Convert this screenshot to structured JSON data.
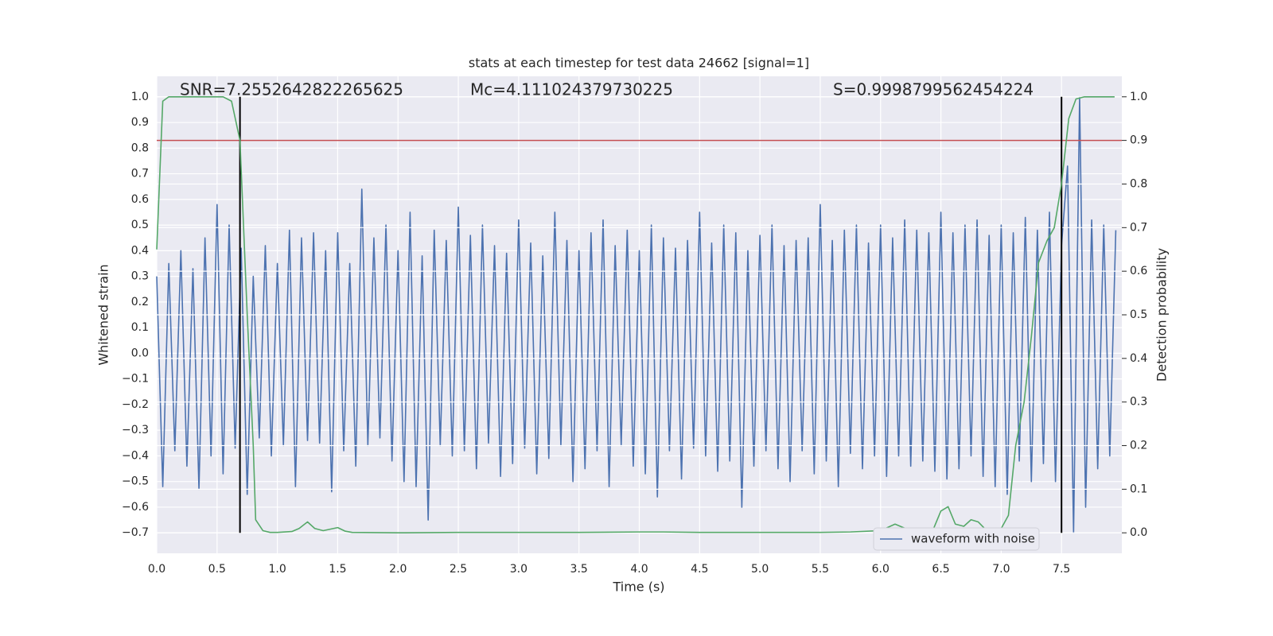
{
  "chart_data": {
    "type": "line",
    "title": "stats at each timestep for test data 24662 [signal=1]",
    "x_label": "Time (s)",
    "y_label": "Whitened strain",
    "y2_label": "Detection probability",
    "annotations": [
      "SNR=7.2552642822265625",
      "Mc=4.111024379730225",
      "S=0.9998799562454224"
    ],
    "grid": true,
    "legend": "lower right",
    "xlim": [
      0,
      8
    ],
    "ylim": [
      -0.78,
      1.08
    ],
    "y2lim": [
      -0.047,
      1.047
    ],
    "xticks": [
      {
        "value": 0,
        "label": "0.0"
      },
      {
        "value": 0.5,
        "label": "0.5"
      },
      {
        "value": 1,
        "label": "1.0"
      },
      {
        "value": 1.5,
        "label": "1.5"
      },
      {
        "value": 2,
        "label": "2.0"
      },
      {
        "value": 2.5,
        "label": "2.5"
      },
      {
        "value": 3,
        "label": "3.0"
      },
      {
        "value": 3.5,
        "label": "3.5"
      },
      {
        "value": 4,
        "label": "4.0"
      },
      {
        "value": 4.5,
        "label": "4.5"
      },
      {
        "value": 5,
        "label": "5.0"
      },
      {
        "value": 5.5,
        "label": "5.5"
      },
      {
        "value": 6,
        "label": "6.0"
      },
      {
        "value": 6.5,
        "label": "6.5"
      },
      {
        "value": 7,
        "label": "7.0"
      },
      {
        "value": 7.5,
        "label": "7.5"
      }
    ],
    "yticks": [
      {
        "value": -0.7,
        "label": "−0.7"
      },
      {
        "value": -0.6,
        "label": "−0.6"
      },
      {
        "value": -0.5,
        "label": "−0.5"
      },
      {
        "value": -0.4,
        "label": "−0.4"
      },
      {
        "value": -0.3,
        "label": "−0.3"
      },
      {
        "value": -0.2,
        "label": "−0.2"
      },
      {
        "value": -0.1,
        "label": "−0.1"
      },
      {
        "value": 0,
        "label": "0.0"
      },
      {
        "value": 0.1,
        "label": "0.1"
      },
      {
        "value": 0.2,
        "label": "0.2"
      },
      {
        "value": 0.3,
        "label": "0.3"
      },
      {
        "value": 0.4,
        "label": "0.4"
      },
      {
        "value": 0.5,
        "label": "0.5"
      },
      {
        "value": 0.6,
        "label": "0.6"
      },
      {
        "value": 0.7,
        "label": "0.7"
      },
      {
        "value": 0.8,
        "label": "0.8"
      },
      {
        "value": 0.9,
        "label": "0.9"
      },
      {
        "value": 1,
        "label": "1.0"
      }
    ],
    "y2ticks": [
      {
        "value": 0,
        "label": "0.0"
      },
      {
        "value": 0.1,
        "label": "0.1"
      },
      {
        "value": 0.2,
        "label": "0.2"
      },
      {
        "value": 0.3,
        "label": "0.3"
      },
      {
        "value": 0.4,
        "label": "0.4"
      },
      {
        "value": 0.5,
        "label": "0.5"
      },
      {
        "value": 0.6,
        "label": "0.6"
      },
      {
        "value": 0.7,
        "label": "0.7"
      },
      {
        "value": 0.8,
        "label": "0.8"
      },
      {
        "value": 0.9,
        "label": "0.9"
      },
      {
        "value": 1,
        "label": "1.0"
      }
    ],
    "series": [
      {
        "name": "waveform with noise",
        "color": "#4c72b0",
        "x": [
          0,
          0.05,
          0.1,
          0.15,
          0.2,
          0.25,
          0.3,
          0.35,
          0.4,
          0.45,
          0.5,
          0.55,
          0.6,
          0.65,
          0.7,
          0.75,
          0.8,
          0.85,
          0.9,
          0.95,
          1,
          1.05,
          1.1,
          1.15,
          1.2,
          1.25,
          1.3,
          1.35,
          1.4,
          1.45,
          1.5,
          1.55,
          1.6,
          1.65,
          1.7,
          1.75,
          1.8,
          1.85,
          1.9,
          1.95,
          2,
          2.05,
          2.1,
          2.15,
          2.2,
          2.25,
          2.3,
          2.35,
          2.4,
          2.45,
          2.5,
          2.55,
          2.6,
          2.65,
          2.7,
          2.75,
          2.8,
          2.85,
          2.9,
          2.95,
          3,
          3.05,
          3.1,
          3.15,
          3.2,
          3.25,
          3.3,
          3.35,
          3.4,
          3.45,
          3.5,
          3.55,
          3.6,
          3.65,
          3.7,
          3.75,
          3.8,
          3.85,
          3.9,
          3.95,
          4,
          4.05,
          4.1,
          4.15,
          4.2,
          4.25,
          4.3,
          4.35,
          4.4,
          4.45,
          4.5,
          4.55,
          4.6,
          4.65,
          4.7,
          4.75,
          4.8,
          4.85,
          4.9,
          4.95,
          5,
          5.05,
          5.1,
          5.15,
          5.2,
          5.25,
          5.3,
          5.35,
          5.4,
          5.45,
          5.5,
          5.55,
          5.6,
          5.65,
          5.7,
          5.75,
          5.8,
          5.85,
          5.9,
          5.95,
          6,
          6.05,
          6.1,
          6.15,
          6.2,
          6.25,
          6.3,
          6.35,
          6.4,
          6.45,
          6.5,
          6.55,
          6.6,
          6.65,
          6.7,
          6.75,
          6.8,
          6.85,
          6.9,
          6.95,
          7,
          7.05,
          7.1,
          7.15,
          7.2,
          7.25,
          7.3,
          7.35,
          7.4,
          7.45,
          7.5,
          7.55,
          7.6,
          7.65,
          7.7,
          7.75,
          7.8,
          7.85,
          7.9,
          7.95
        ],
        "values": [
          0.3,
          -0.52,
          0.35,
          -0.38,
          0.4,
          -0.44,
          0.33,
          -0.53,
          0.45,
          -0.4,
          0.58,
          -0.47,
          0.5,
          -0.37,
          0.41,
          -0.55,
          0.3,
          -0.33,
          0.42,
          -0.4,
          0.35,
          -0.36,
          0.48,
          -0.52,
          0.45,
          -0.34,
          0.47,
          -0.35,
          0.4,
          -0.54,
          0.47,
          -0.38,
          0.35,
          -0.44,
          0.64,
          -0.36,
          0.45,
          -0.33,
          0.5,
          -0.42,
          0.4,
          -0.5,
          0.55,
          -0.52,
          0.38,
          -0.65,
          0.48,
          -0.36,
          0.44,
          -0.4,
          0.57,
          -0.38,
          0.46,
          -0.45,
          0.5,
          -0.35,
          0.42,
          -0.48,
          0.39,
          -0.43,
          0.52,
          -0.37,
          0.43,
          -0.47,
          0.38,
          -0.41,
          0.55,
          -0.36,
          0.44,
          -0.5,
          0.4,
          -0.45,
          0.47,
          -0.38,
          0.52,
          -0.52,
          0.42,
          -0.36,
          0.48,
          -0.44,
          0.4,
          -0.47,
          0.5,
          -0.56,
          0.45,
          -0.38,
          0.41,
          -0.49,
          0.44,
          -0.37,
          0.55,
          -0.4,
          0.43,
          -0.46,
          0.5,
          -0.42,
          0.47,
          -0.6,
          0.4,
          -0.44,
          0.46,
          -0.38,
          0.5,
          -0.45,
          0.42,
          -0.5,
          0.44,
          -0.38,
          0.45,
          -0.47,
          0.58,
          -0.42,
          0.44,
          -0.52,
          0.48,
          -0.39,
          0.5,
          -0.45,
          0.43,
          -0.4,
          0.5,
          -0.48,
          0.45,
          -0.4,
          0.52,
          -0.44,
          0.48,
          -0.42,
          0.47,
          -0.46,
          0.55,
          -0.49,
          0.47,
          -0.45,
          0.5,
          -0.4,
          0.52,
          -0.48,
          0.46,
          -0.52,
          0.5,
          -0.55,
          0.47,
          -0.42,
          0.53,
          -0.5,
          0.48,
          -0.43,
          0.55,
          -0.5,
          0.42,
          0.73,
          -0.7,
          1.0,
          -0.6,
          0.52,
          -0.45,
          0.5,
          -0.4,
          0.48
        ]
      },
      {
        "color": "#55a868",
        "axis": "y2",
        "x": [
          0,
          0.05,
          0.1,
          0.2,
          0.3,
          0.4,
          0.5,
          0.55,
          0.62,
          0.69,
          0.75,
          0.8,
          0.82,
          0.88,
          0.94,
          1.0,
          1.12,
          1.18,
          1.25,
          1.31,
          1.38,
          1.5,
          1.56,
          1.62,
          2.0,
          2.5,
          3.0,
          3.5,
          4.0,
          4.2,
          4.5,
          5.0,
          5.5,
          5.75,
          6.0,
          6.12,
          6.25,
          6.38,
          6.44,
          6.5,
          6.56,
          6.62,
          6.69,
          6.75,
          6.81,
          6.88,
          6.94,
          7.0,
          7.06,
          7.12,
          7.19,
          7.25,
          7.31,
          7.38,
          7.44,
          7.5,
          7.56,
          7.62,
          7.69,
          7.94
        ],
        "values": [
          0.65,
          0.99,
          1.0,
          1.0,
          1.0,
          1.0,
          1.0,
          1.0,
          0.99,
          0.9,
          0.5,
          0.2,
          0.03,
          0.005,
          0.001,
          0.001,
          0.003,
          0.01,
          0.025,
          0.01,
          0.005,
          0.012,
          0.004,
          0.001,
          0.0,
          0.001,
          0.001,
          0.001,
          0.002,
          0.002,
          0.001,
          0.001,
          0.001,
          0.002,
          0.005,
          0.02,
          0.005,
          0.004,
          0.01,
          0.05,
          0.06,
          0.02,
          0.015,
          0.03,
          0.025,
          0.005,
          0.003,
          0.01,
          0.04,
          0.2,
          0.3,
          0.45,
          0.62,
          0.67,
          0.7,
          0.8,
          0.95,
          0.995,
          1.0,
          1.0
        ]
      }
    ],
    "hlines": [
      {
        "value": 0.9,
        "axis": "y2",
        "color": "#c44e52"
      }
    ],
    "vlines": [
      {
        "x": 0.69,
        "y2range": [
          0,
          1
        ],
        "color": "#000000"
      },
      {
        "x": 7.5,
        "y2range": [
          0,
          1
        ],
        "color": "#000000"
      }
    ]
  }
}
